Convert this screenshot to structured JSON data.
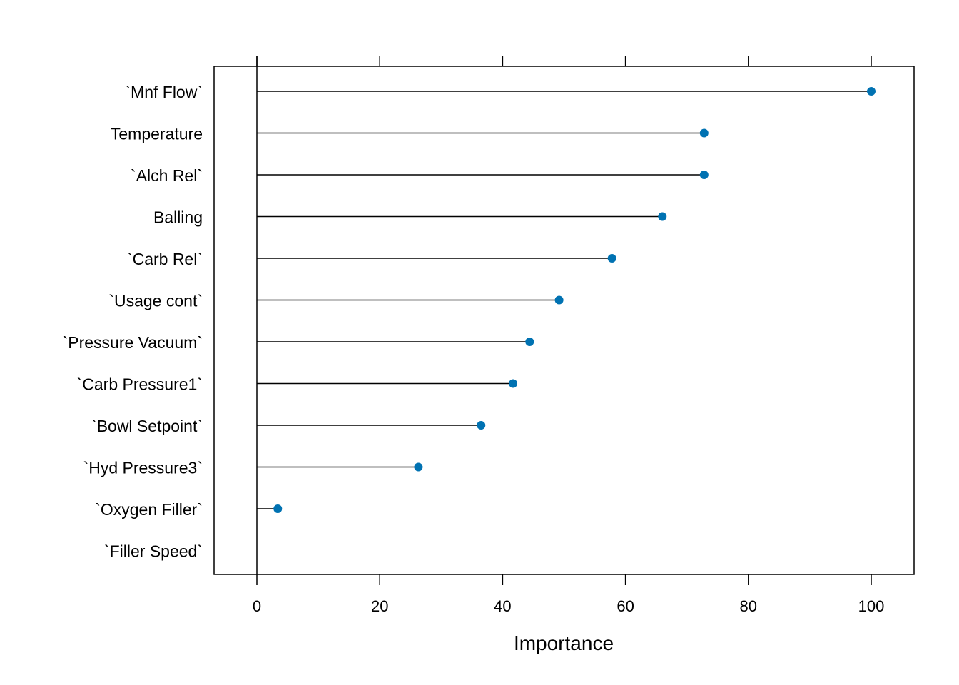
{
  "chart_data": {
    "type": "dot",
    "xlabel": "Importance",
    "ylabel": "",
    "xlim": [
      -7,
      107
    ],
    "xticks": [
      0,
      20,
      40,
      60,
      80,
      100
    ],
    "grid": false,
    "point_color": "#0072B2",
    "categories": [
      "`Mnf Flow`",
      "Temperature",
      "`Alch Rel`",
      "Balling",
      "`Carb Rel`",
      "`Usage cont`",
      "`Pressure Vacuum`",
      "`Carb Pressure1`",
      "`Bowl Setpoint`",
      "`Hyd Pressure3`",
      "`Oxygen Filler`",
      "`Filler Speed`"
    ],
    "values": [
      100,
      72.8,
      72.8,
      66.0,
      57.8,
      49.2,
      44.4,
      41.7,
      36.5,
      26.3,
      3.4,
      0
    ]
  }
}
